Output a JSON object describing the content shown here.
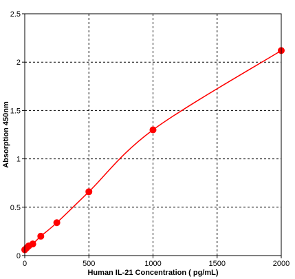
{
  "chart_data": {
    "type": "scatter",
    "title": "",
    "xlabel": "Human IL-21 Concentration ( pg/mL)",
    "ylabel": "Absorption 450nm",
    "xlim": [
      0,
      2000
    ],
    "ylim": [
      0,
      2.5
    ],
    "x_ticks": [
      0,
      500,
      1000,
      1500,
      2000
    ],
    "y_ticks": [
      0,
      0.5,
      1,
      1.5,
      2,
      2.5
    ],
    "x_tick_labels": [
      "0",
      "500",
      "1000",
      "1500",
      "2000"
    ],
    "y_tick_labels": [
      "0",
      "0.5",
      "1",
      "1.5",
      "2",
      "2.5"
    ],
    "grid": true,
    "legend": "none",
    "series": [
      {
        "x": [
          0,
          15.6,
          31.25,
          62.5,
          125,
          250,
          500,
          1000,
          2000
        ],
        "y": [
          0.06,
          0.08,
          0.1,
          0.12,
          0.2,
          0.34,
          0.66,
          1.3,
          2.12
        ],
        "color": "#ff0000",
        "marker": "filled-circle",
        "fit_line": "smooth-curve"
      }
    ]
  }
}
